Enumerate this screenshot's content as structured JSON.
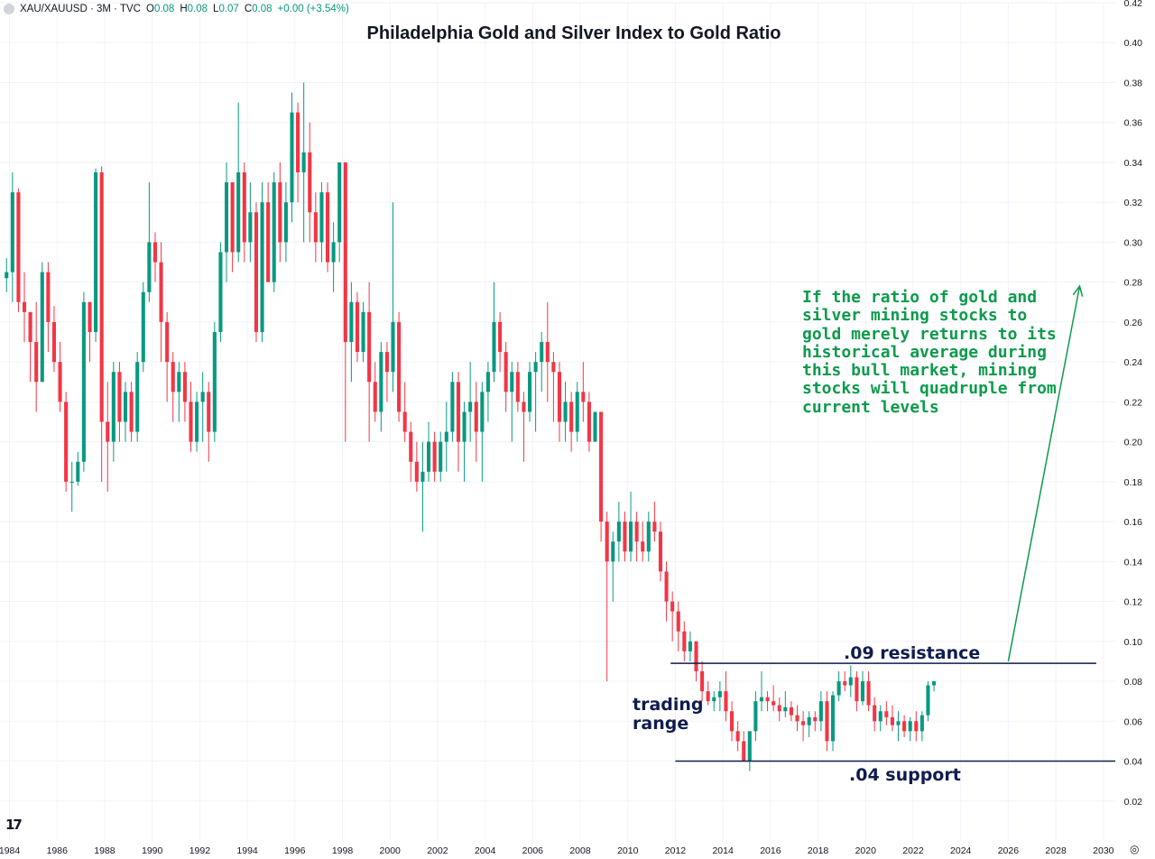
{
  "header": {
    "symbol": "XAU/XAUUSD · 3M · TVC",
    "open_label": "O",
    "open": "0.08",
    "high_label": "H",
    "high": "0.08",
    "low_label": "L",
    "low": "0.07",
    "close_label": "C",
    "close": "0.08",
    "change": "+0.00 (+3.54%)"
  },
  "annotations": {
    "resistance": ".09 resistance",
    "support": ".04 support",
    "trading_range": "trading range",
    "note": "If the ratio of gold and silver mining stocks to gold merely returns to its historical average during this bull market, mining stocks will quadruple from current levels"
  },
  "icons": {
    "logo": "tradingview-logo-icon",
    "settings": "settings-icon"
  },
  "colors": {
    "up": "#089981",
    "down": "#f23645",
    "note": "#0d9b4c",
    "annotation": "#101c4e"
  },
  "chart_data": {
    "type": "candlestick",
    "title": "Philadelphia Gold and Silver Index to Gold Ratio",
    "xlim": [
      1983.6,
      2030.5
    ],
    "ylim": [
      0.0,
      0.42
    ],
    "x_ticks": [
      "1984",
      "1986",
      "1988",
      "1990",
      "1992",
      "1994",
      "1996",
      "1998",
      "2000",
      "2002",
      "2004",
      "2006",
      "2008",
      "2010",
      "2012",
      "2014",
      "2016",
      "2018",
      "2020",
      "2022",
      "2024",
      "2026",
      "2028",
      "2030"
    ],
    "y_ticks": [
      "0.02",
      "0.04",
      "0.06",
      "0.08",
      "0.10",
      "0.12",
      "0.14",
      "0.16",
      "0.18",
      "0.20",
      "0.22",
      "0.24",
      "0.26",
      "0.28",
      "0.30",
      "0.32",
      "0.34",
      "0.36",
      "0.38",
      "0.40",
      "0.42"
    ],
    "grid": true,
    "resistance_level": 0.089,
    "support_level": 0.04,
    "projection": {
      "x": [
        2026.0,
        2029.0
      ],
      "y": [
        0.09,
        0.278
      ]
    },
    "candles_ohlc_quarterly_from_1983.75": [
      [
        0.282,
        0.292,
        0.275,
        0.285
      ],
      [
        0.285,
        0.335,
        0.27,
        0.325
      ],
      [
        0.325,
        0.327,
        0.265,
        0.27
      ],
      [
        0.27,
        0.285,
        0.25,
        0.265
      ],
      [
        0.265,
        0.265,
        0.23,
        0.25
      ],
      [
        0.25,
        0.27,
        0.215,
        0.23
      ],
      [
        0.23,
        0.29,
        0.23,
        0.285
      ],
      [
        0.285,
        0.29,
        0.245,
        0.26
      ],
      [
        0.26,
        0.268,
        0.235,
        0.24
      ],
      [
        0.24,
        0.25,
        0.215,
        0.22
      ],
      [
        0.22,
        0.225,
        0.175,
        0.18
      ],
      [
        0.18,
        0.19,
        0.165,
        0.18
      ],
      [
        0.18,
        0.195,
        0.178,
        0.19
      ],
      [
        0.19,
        0.275,
        0.185,
        0.27
      ],
      [
        0.27,
        0.27,
        0.24,
        0.255
      ],
      [
        0.255,
        0.337,
        0.25,
        0.335
      ],
      [
        0.335,
        0.338,
        0.18,
        0.21
      ],
      [
        0.21,
        0.23,
        0.175,
        0.2
      ],
      [
        0.2,
        0.24,
        0.19,
        0.235
      ],
      [
        0.235,
        0.24,
        0.2,
        0.21
      ],
      [
        0.21,
        0.23,
        0.2,
        0.225
      ],
      [
        0.225,
        0.23,
        0.2,
        0.205
      ],
      [
        0.205,
        0.245,
        0.2,
        0.24
      ],
      [
        0.24,
        0.28,
        0.235,
        0.275
      ],
      [
        0.275,
        0.33,
        0.27,
        0.3
      ],
      [
        0.3,
        0.305,
        0.28,
        0.29
      ],
      [
        0.29,
        0.3,
        0.24,
        0.26
      ],
      [
        0.26,
        0.265,
        0.22,
        0.24
      ],
      [
        0.24,
        0.245,
        0.21,
        0.225
      ],
      [
        0.225,
        0.24,
        0.21,
        0.235
      ],
      [
        0.235,
        0.24,
        0.21,
        0.22
      ],
      [
        0.22,
        0.23,
        0.195,
        0.2
      ],
      [
        0.2,
        0.225,
        0.195,
        0.22
      ],
      [
        0.22,
        0.235,
        0.2,
        0.225
      ],
      [
        0.225,
        0.23,
        0.19,
        0.205
      ],
      [
        0.205,
        0.26,
        0.2,
        0.255
      ],
      [
        0.255,
        0.3,
        0.25,
        0.295
      ],
      [
        0.295,
        0.34,
        0.28,
        0.33
      ],
      [
        0.33,
        0.33,
        0.285,
        0.295
      ],
      [
        0.295,
        0.37,
        0.29,
        0.335
      ],
      [
        0.335,
        0.34,
        0.29,
        0.3
      ],
      [
        0.3,
        0.33,
        0.29,
        0.315
      ],
      [
        0.315,
        0.32,
        0.25,
        0.255
      ],
      [
        0.255,
        0.33,
        0.25,
        0.32
      ],
      [
        0.32,
        0.33,
        0.285,
        0.28
      ],
      [
        0.28,
        0.335,
        0.275,
        0.33
      ],
      [
        0.33,
        0.34,
        0.29,
        0.3
      ],
      [
        0.3,
        0.33,
        0.29,
        0.32
      ],
      [
        0.32,
        0.375,
        0.31,
        0.365
      ],
      [
        0.365,
        0.37,
        0.32,
        0.335
      ],
      [
        0.335,
        0.38,
        0.3,
        0.345
      ],
      [
        0.345,
        0.36,
        0.3,
        0.315
      ],
      [
        0.315,
        0.325,
        0.29,
        0.3
      ],
      [
        0.3,
        0.33,
        0.29,
        0.325
      ],
      [
        0.325,
        0.33,
        0.285,
        0.29
      ],
      [
        0.29,
        0.31,
        0.275,
        0.3
      ],
      [
        0.3,
        0.34,
        0.29,
        0.34
      ],
      [
        0.34,
        0.34,
        0.2,
        0.25
      ],
      [
        0.25,
        0.28,
        0.23,
        0.27
      ],
      [
        0.27,
        0.275,
        0.24,
        0.245
      ],
      [
        0.245,
        0.27,
        0.24,
        0.265
      ],
      [
        0.265,
        0.28,
        0.2,
        0.23
      ],
      [
        0.23,
        0.24,
        0.21,
        0.215
      ],
      [
        0.215,
        0.25,
        0.205,
        0.245
      ],
      [
        0.245,
        0.25,
        0.22,
        0.235
      ],
      [
        0.235,
        0.32,
        0.225,
        0.26
      ],
      [
        0.26,
        0.265,
        0.21,
        0.215
      ],
      [
        0.215,
        0.23,
        0.2,
        0.205
      ],
      [
        0.205,
        0.21,
        0.18,
        0.19
      ],
      [
        0.19,
        0.2,
        0.175,
        0.18
      ],
      [
        0.18,
        0.2,
        0.155,
        0.185
      ],
      [
        0.185,
        0.21,
        0.18,
        0.2
      ],
      [
        0.2,
        0.205,
        0.18,
        0.185
      ],
      [
        0.185,
        0.205,
        0.18,
        0.2
      ],
      [
        0.2,
        0.22,
        0.185,
        0.205
      ],
      [
        0.205,
        0.235,
        0.2,
        0.23
      ],
      [
        0.23,
        0.235,
        0.185,
        0.2
      ],
      [
        0.2,
        0.22,
        0.18,
        0.215
      ],
      [
        0.215,
        0.24,
        0.2,
        0.22
      ],
      [
        0.22,
        0.23,
        0.19,
        0.205
      ],
      [
        0.205,
        0.23,
        0.18,
        0.225
      ],
      [
        0.225,
        0.24,
        0.21,
        0.235
      ],
      [
        0.235,
        0.28,
        0.23,
        0.26
      ],
      [
        0.26,
        0.265,
        0.235,
        0.245
      ],
      [
        0.245,
        0.25,
        0.215,
        0.225
      ],
      [
        0.225,
        0.24,
        0.2,
        0.235
      ],
      [
        0.235,
        0.24,
        0.215,
        0.22
      ],
      [
        0.22,
        0.225,
        0.19,
        0.215
      ],
      [
        0.215,
        0.24,
        0.21,
        0.235
      ],
      [
        0.235,
        0.245,
        0.205,
        0.24
      ],
      [
        0.24,
        0.255,
        0.225,
        0.25
      ],
      [
        0.25,
        0.27,
        0.22,
        0.24
      ],
      [
        0.24,
        0.245,
        0.21,
        0.235
      ],
      [
        0.235,
        0.24,
        0.2,
        0.21
      ],
      [
        0.21,
        0.23,
        0.2,
        0.22
      ],
      [
        0.22,
        0.225,
        0.195,
        0.205
      ],
      [
        0.205,
        0.23,
        0.2,
        0.225
      ],
      [
        0.225,
        0.24,
        0.21,
        0.22
      ],
      [
        0.22,
        0.225,
        0.195,
        0.2
      ],
      [
        0.2,
        0.215,
        0.2,
        0.215
      ],
      [
        0.215,
        0.215,
        0.15,
        0.16
      ],
      [
        0.16,
        0.165,
        0.08,
        0.14
      ],
      [
        0.14,
        0.155,
        0.12,
        0.15
      ],
      [
        0.15,
        0.17,
        0.14,
        0.16
      ],
      [
        0.16,
        0.165,
        0.14,
        0.145
      ],
      [
        0.145,
        0.175,
        0.14,
        0.16
      ],
      [
        0.16,
        0.165,
        0.14,
        0.15
      ],
      [
        0.15,
        0.16,
        0.14,
        0.145
      ],
      [
        0.145,
        0.165,
        0.14,
        0.16
      ],
      [
        0.16,
        0.17,
        0.15,
        0.155
      ],
      [
        0.155,
        0.16,
        0.13,
        0.135
      ],
      [
        0.135,
        0.14,
        0.11,
        0.12
      ],
      [
        0.12,
        0.125,
        0.1,
        0.115
      ],
      [
        0.115,
        0.12,
        0.095,
        0.105
      ],
      [
        0.105,
        0.11,
        0.09,
        0.095
      ],
      [
        0.095,
        0.105,
        0.09,
        0.1
      ],
      [
        0.1,
        0.1,
        0.08,
        0.085
      ],
      [
        0.085,
        0.09,
        0.07,
        0.075
      ],
      [
        0.075,
        0.08,
        0.068,
        0.07
      ],
      [
        0.07,
        0.075,
        0.065,
        0.072
      ],
      [
        0.072,
        0.08,
        0.065,
        0.075
      ],
      [
        0.075,
        0.085,
        0.06,
        0.065
      ],
      [
        0.065,
        0.07,
        0.05,
        0.055
      ],
      [
        0.055,
        0.06,
        0.045,
        0.05
      ],
      [
        0.05,
        0.055,
        0.045,
        0.04
      ],
      [
        0.04,
        0.045,
        0.035,
        0.055
      ],
      [
        0.055,
        0.075,
        0.05,
        0.07
      ],
      [
        0.07,
        0.085,
        0.065,
        0.072
      ],
      [
        0.072,
        0.075,
        0.065,
        0.07
      ],
      [
        0.07,
        0.078,
        0.065,
        0.068
      ],
      [
        0.068,
        0.072,
        0.06,
        0.065
      ],
      [
        0.065,
        0.075,
        0.062,
        0.067
      ],
      [
        0.067,
        0.07,
        0.06,
        0.063
      ],
      [
        0.063,
        0.068,
        0.055,
        0.06
      ],
      [
        0.06,
        0.065,
        0.05,
        0.058
      ],
      [
        0.058,
        0.065,
        0.052,
        0.062
      ],
      [
        0.062,
        0.065,
        0.055,
        0.06
      ],
      [
        0.06,
        0.075,
        0.055,
        0.07
      ],
      [
        0.07,
        0.075,
        0.045,
        0.05
      ],
      [
        0.05,
        0.075,
        0.045,
        0.073
      ],
      [
        0.073,
        0.085,
        0.07,
        0.08
      ],
      [
        0.08,
        0.085,
        0.075,
        0.078
      ],
      [
        0.078,
        0.088,
        0.072,
        0.082
      ],
      [
        0.082,
        0.085,
        0.065,
        0.07
      ],
      [
        0.07,
        0.085,
        0.068,
        0.08
      ],
      [
        0.08,
        0.085,
        0.065,
        0.068
      ],
      [
        0.068,
        0.072,
        0.055,
        0.06
      ],
      [
        0.06,
        0.068,
        0.055,
        0.065
      ],
      [
        0.065,
        0.07,
        0.058,
        0.062
      ],
      [
        0.062,
        0.068,
        0.055,
        0.058
      ],
      [
        0.058,
        0.065,
        0.05,
        0.06
      ],
      [
        0.06,
        0.063,
        0.052,
        0.055
      ],
      [
        0.055,
        0.062,
        0.05,
        0.06
      ],
      [
        0.06,
        0.065,
        0.05,
        0.055
      ],
      [
        0.055,
        0.065,
        0.05,
        0.063
      ],
      [
        0.063,
        0.08,
        0.06,
        0.078
      ],
      [
        0.078,
        0.08,
        0.075,
        0.08
      ]
    ]
  }
}
